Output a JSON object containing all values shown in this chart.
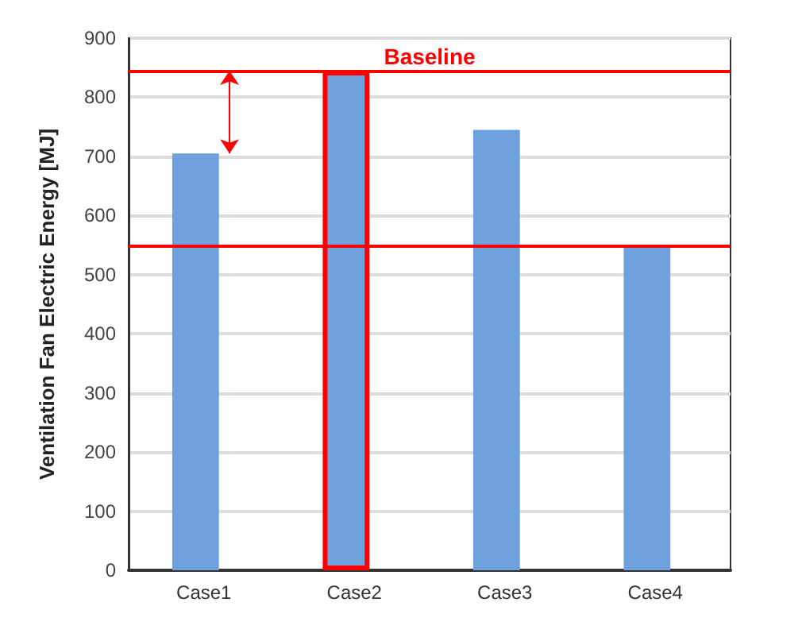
{
  "chart_data": {
    "type": "bar",
    "ylabel": "Ventilation Fan Electric Energy [MJ]",
    "categories": [
      "Case1",
      "Case2",
      "Case3",
      "Case4"
    ],
    "values": [
      705,
      845,
      745,
      550
    ],
    "color": "#6ea1de",
    "ylim": [
      0,
      900
    ],
    "yticks": [
      0,
      100,
      200,
      300,
      400,
      500,
      600,
      700,
      800,
      900
    ],
    "grid": "y",
    "ref_lines": [
      {
        "axis": "y",
        "value": 845,
        "label": "Baseline",
        "color": "#ff0000"
      },
      {
        "axis": "y",
        "value": 550,
        "label": null,
        "color": "#ff0000"
      }
    ]
  }
}
